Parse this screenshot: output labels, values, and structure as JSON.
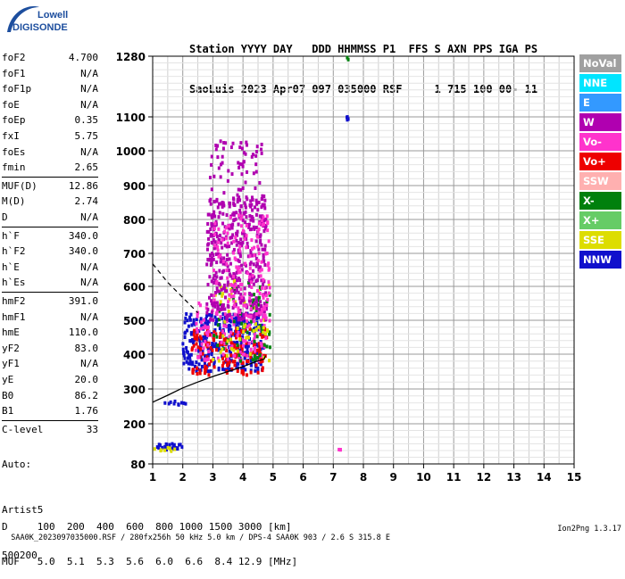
{
  "logo": {
    "line1": "Lowell",
    "line2": "DIGISONDE",
    "color": "#1d4e9e"
  },
  "header": {
    "line1": "Station YYYY DAY   DDD HHMMSS P1  FFS S AXN PPS IGA PS",
    "line2": "SaoLuis 2023 Apr07 097 035000 RSF     1 715 100 00- 11"
  },
  "params": {
    "group1": [
      {
        "key": "foF2",
        "value": "4.700"
      },
      {
        "key": "foF1",
        "value": "N/A"
      },
      {
        "key": "foF1p",
        "value": "N/A"
      },
      {
        "key": "foE",
        "value": "N/A"
      },
      {
        "key": "foEp",
        "value": "0.35"
      },
      {
        "key": "fxI",
        "value": "5.75"
      },
      {
        "key": "foEs",
        "value": "N/A"
      },
      {
        "key": "fmin",
        "value": "2.65"
      }
    ],
    "group2": [
      {
        "key": "MUF(D)",
        "value": "12.86"
      },
      {
        "key": "M(D)",
        "value": "2.74"
      },
      {
        "key": "D",
        "value": "N/A"
      }
    ],
    "group3": [
      {
        "key": "h`F",
        "value": "340.0"
      },
      {
        "key": "h`F2",
        "value": "340.0"
      },
      {
        "key": "h`E",
        "value": "N/A"
      },
      {
        "key": "h`Es",
        "value": "N/A"
      }
    ],
    "group4": [
      {
        "key": "hmF2",
        "value": "391.0"
      },
      {
        "key": "hmF1",
        "value": "N/A"
      },
      {
        "key": "hmE",
        "value": "110.0"
      },
      {
        "key": "yF2",
        "value": "83.0"
      },
      {
        "key": "yF1",
        "value": "N/A"
      },
      {
        "key": "yE",
        "value": "20.0"
      },
      {
        "key": "B0",
        "value": "86.2"
      },
      {
        "key": "B1",
        "value": "1.76"
      }
    ],
    "group5": [
      {
        "key": "C-level",
        "value": "33"
      }
    ]
  },
  "auto": {
    "line1": "Auto:",
    "line2": "Artist5",
    "line3": "500200"
  },
  "legend": [
    {
      "label": "NoVal",
      "bg": "#a0a0a0",
      "fg": "#ffffff"
    },
    {
      "label": "NNE",
      "bg": "#00e5ff",
      "fg": "#ffffff"
    },
    {
      "label": "E",
      "bg": "#3399ff",
      "fg": "#ffffff"
    },
    {
      "label": "W",
      "bg": "#b000b0",
      "fg": "#ffffff"
    },
    {
      "label": "Vo-",
      "bg": "#ff33cc",
      "fg": "#ffffff"
    },
    {
      "label": "Vo+",
      "bg": "#ee0000",
      "fg": "#ffffff"
    },
    {
      "label": "SSW",
      "bg": "#ffb0b0",
      "fg": "#ffffff"
    },
    {
      "label": "X-",
      "bg": "#00800d",
      "fg": "#ffffff"
    },
    {
      "label": "X+",
      "bg": "#66cc66",
      "fg": "#ffffff"
    },
    {
      "label": "SSE",
      "bg": "#dddd00",
      "fg": "#ffffff"
    },
    {
      "label": "NNW",
      "bg": "#1010cc",
      "fg": "#ffffff"
    }
  ],
  "bottom": {
    "dline": "D     100  200  400  600  800 1000 1500 3000 [km]",
    "mufline": "MUF   5.0  5.1  5.3  5.6  6.0  6.6  8.4 12.9 [MHz]"
  },
  "footer": {
    "left": "SAA0K_2023097035000.RSF / 280fx256h 50 kHz 5.0 km / DPS-4 SAA0K 903 / 2.6 S 315.8 E",
    "right": "Ion2Png 1.3.17"
  },
  "chart_data": {
    "type": "scatter",
    "xlim": [
      1,
      15
    ],
    "ylim": [
      80,
      1290
    ],
    "x_ticks": [
      1,
      2,
      3,
      4,
      5,
      6,
      7,
      8,
      9,
      10,
      11,
      12,
      13,
      14,
      15
    ],
    "y_ticks": [
      80,
      200,
      300,
      400,
      500,
      600,
      700,
      800,
      900,
      1000,
      1100,
      1280
    ],
    "grid": true,
    "xlabel": "",
    "ylabel": "",
    "title": "",
    "profile_solid": [
      [
        1.0,
        262
      ],
      [
        1.5,
        282
      ],
      [
        2.0,
        303
      ],
      [
        2.5,
        320
      ],
      [
        3.0,
        336
      ],
      [
        3.5,
        350
      ],
      [
        4.0,
        364
      ],
      [
        4.4,
        378
      ],
      [
        4.7,
        386
      ],
      [
        4.75,
        396
      ]
    ],
    "profile_dashed": [
      [
        1.0,
        668
      ],
      [
        1.5,
        612
      ],
      [
        2.0,
        567
      ],
      [
        2.5,
        522
      ]
    ],
    "clusters": [
      {
        "name": "low-trace",
        "color": "#1010cc",
        "x": [
          1.05,
          2.0
        ],
        "y": [
          122,
          140
        ],
        "n": 30
      },
      {
        "name": "low-trace-y",
        "color": "#dddd00",
        "x": [
          1.05,
          1.9
        ],
        "y": [
          118,
          130
        ],
        "n": 8
      },
      {
        "name": "E-region",
        "color": "#1010cc",
        "x": [
          1.4,
          2.1
        ],
        "y": [
          250,
          265
        ],
        "n": 10
      },
      {
        "name": "F-lower-W",
        "color": "#1010cc",
        "x": [
          2.0,
          4.7
        ],
        "y": [
          350,
          520
        ],
        "n": 340
      },
      {
        "name": "F-lower-red",
        "color": "#ee0000",
        "x": [
          2.3,
          4.8
        ],
        "y": [
          340,
          480
        ],
        "n": 160
      },
      {
        "name": "F-lower-mix",
        "color": "#ff33cc",
        "x": [
          2.4,
          4.8
        ],
        "y": [
          380,
          560
        ],
        "n": 120
      },
      {
        "name": "F-lower-green",
        "color": "#00800d",
        "x": [
          3.0,
          4.9
        ],
        "y": [
          380,
          620
        ],
        "n": 60
      },
      {
        "name": "F-lower-yellow",
        "color": "#dddd00",
        "x": [
          3.0,
          4.9
        ],
        "y": [
          380,
          640
        ],
        "n": 55
      },
      {
        "name": "F-upper-magenta",
        "color": "#b000b0",
        "x": [
          2.8,
          4.8
        ],
        "y": [
          500,
          860
        ],
        "n": 420
      },
      {
        "name": "F-upper-pink",
        "color": "#ff33cc",
        "x": [
          3.0,
          4.9
        ],
        "y": [
          480,
          820
        ],
        "n": 140
      },
      {
        "name": "F-upper-sparse",
        "color": "#b000b0",
        "x": [
          2.9,
          4.7
        ],
        "y": [
          840,
          1030
        ],
        "n": 70
      },
      {
        "name": "spur-7.5",
        "color": "#1010cc",
        "x": [
          7.45,
          7.5
        ],
        "y": [
          1090,
          1110
        ],
        "n": 4
      },
      {
        "name": "spur-7.5-top",
        "color": "#00800d",
        "x": [
          7.45,
          7.5
        ],
        "y": [
          1270,
          1285
        ],
        "n": 2
      },
      {
        "name": "spur-7.2",
        "color": "#ff33cc",
        "x": [
          7.1,
          7.25
        ],
        "y": [
          122,
          124
        ],
        "n": 3
      }
    ]
  }
}
